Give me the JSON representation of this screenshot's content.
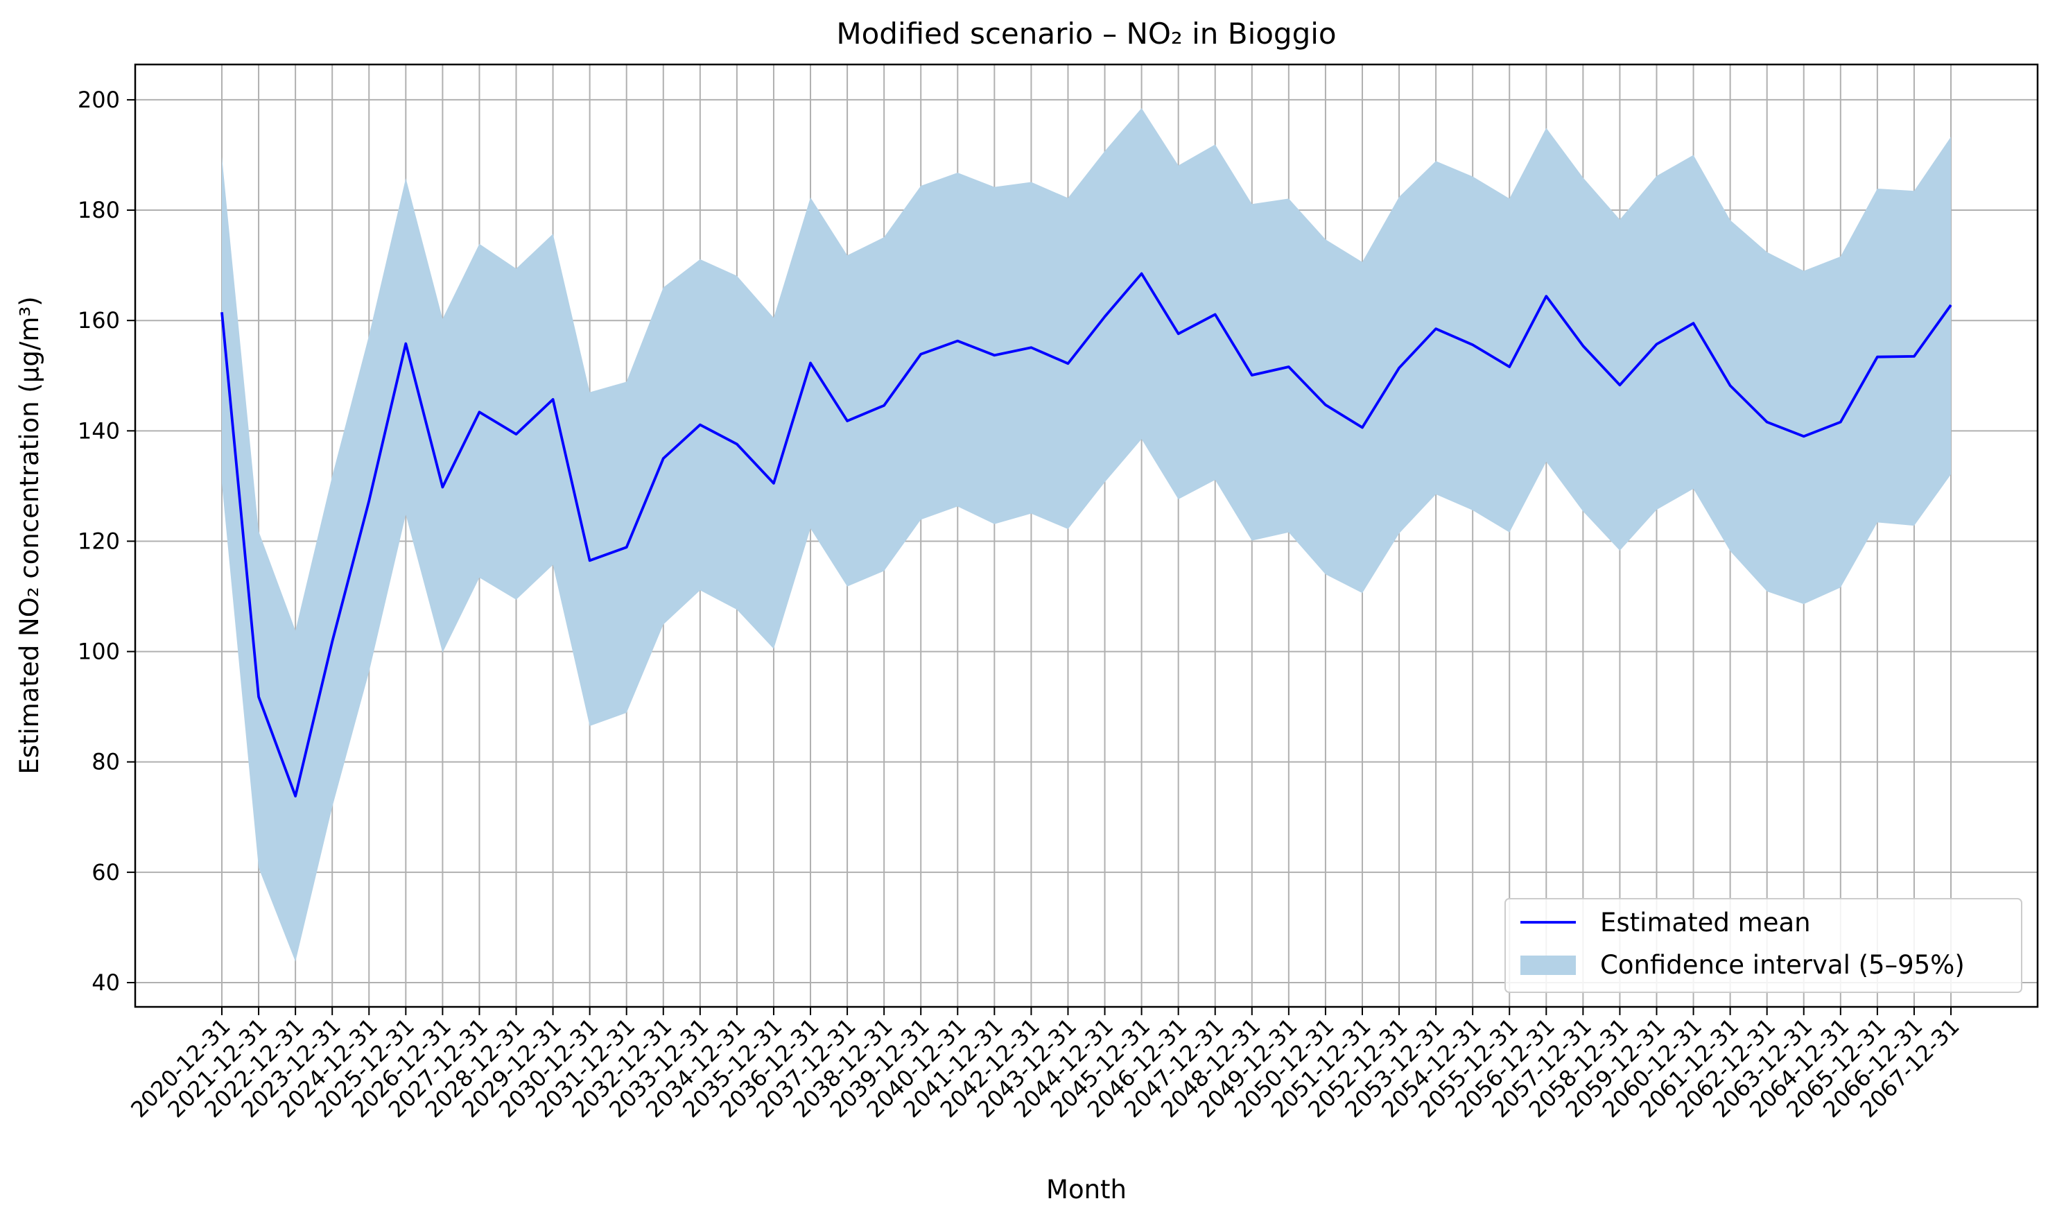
{
  "chart_data": {
    "type": "line",
    "title": "Modified scenario – NO₂ in Bioggio",
    "xlabel": "Month",
    "ylabel": "Estimated NO₂ concentration (µg/m³)",
    "ylim": [
      35.6,
      206.4
    ],
    "yticks": [
      40,
      60,
      80,
      100,
      120,
      140,
      160,
      180,
      200
    ],
    "grid": true,
    "legend_position": "lower-right",
    "categories": [
      "2020-12-31",
      "2021-12-31",
      "2022-12-31",
      "2023-12-31",
      "2024-12-31",
      "2025-12-31",
      "2026-12-31",
      "2027-12-31",
      "2028-12-31",
      "2029-12-31",
      "2030-12-31",
      "2031-12-31",
      "2032-12-31",
      "2033-12-31",
      "2034-12-31",
      "2035-12-31",
      "2036-12-31",
      "2037-12-31",
      "2038-12-31",
      "2039-12-31",
      "2040-12-31",
      "2041-12-31",
      "2042-12-31",
      "2043-12-31",
      "2044-12-31",
      "2045-12-31",
      "2046-12-31",
      "2047-12-31",
      "2048-12-31",
      "2049-12-31",
      "2050-12-31",
      "2051-12-31",
      "2052-12-31",
      "2053-12-31",
      "2054-12-31",
      "2055-12-31",
      "2056-12-31",
      "2057-12-31",
      "2058-12-31",
      "2059-12-31",
      "2060-12-31",
      "2061-12-31",
      "2062-12-31",
      "2063-12-31",
      "2064-12-31",
      "2065-12-31",
      "2066-12-31",
      "2067-12-31"
    ],
    "series": [
      {
        "name": "Estimated mean",
        "color": "#0000ff",
        "values": [
          161.5,
          91.8,
          73.8,
          101.8,
          127.3,
          155.8,
          129.8,
          143.4,
          139.4,
          145.7,
          116.5,
          118.9,
          135.0,
          141.1,
          137.6,
          130.5,
          152.3,
          141.8,
          144.6,
          153.9,
          156.3,
          153.7,
          155.1,
          152.2,
          160.7,
          168.5,
          157.6,
          161.1,
          150.1,
          151.6,
          144.7,
          140.6,
          151.4,
          158.5,
          155.6,
          151.6,
          164.4,
          155.4,
          148.3,
          155.7,
          159.5,
          148.2,
          141.6,
          139.0,
          141.6,
          153.4,
          153.5,
          162.8
        ]
      }
    ],
    "confidence_interval": {
      "name": "Confidence interval (5–95%)",
      "color": "#b4d2e7",
      "lower": [
        130.5,
        60.8,
        43.8,
        71.8,
        96.3,
        124.8,
        99.8,
        113.4,
        109.4,
        115.7,
        86.5,
        88.9,
        104.9,
        111.1,
        107.6,
        100.5,
        122.3,
        111.8,
        114.6,
        123.9,
        126.3,
        123.1,
        125.0,
        122.2,
        130.7,
        138.5,
        127.6,
        131.1,
        120.1,
        121.6,
        114.0,
        110.6,
        121.4,
        128.5,
        125.6,
        121.6,
        134.4,
        125.4,
        118.3,
        125.7,
        129.5,
        118.2,
        110.9,
        108.6,
        111.6,
        123.4,
        122.8,
        132.1
      ],
      "upper": [
        189.7,
        121.8,
        103.8,
        131.8,
        157.3,
        185.8,
        160.3,
        173.9,
        169.4,
        175.7,
        147.0,
        148.9,
        166.0,
        171.1,
        168.1,
        160.5,
        182.3,
        171.8,
        175.1,
        184.4,
        186.8,
        184.2,
        185.1,
        182.2,
        190.7,
        198.5,
        188.1,
        191.9,
        181.1,
        182.1,
        174.7,
        170.6,
        182.4,
        188.9,
        186.1,
        182.1,
        194.9,
        185.9,
        178.3,
        186.2,
        190.0,
        178.2,
        172.4,
        169.0,
        171.6,
        183.9,
        183.5,
        193.3
      ]
    }
  }
}
